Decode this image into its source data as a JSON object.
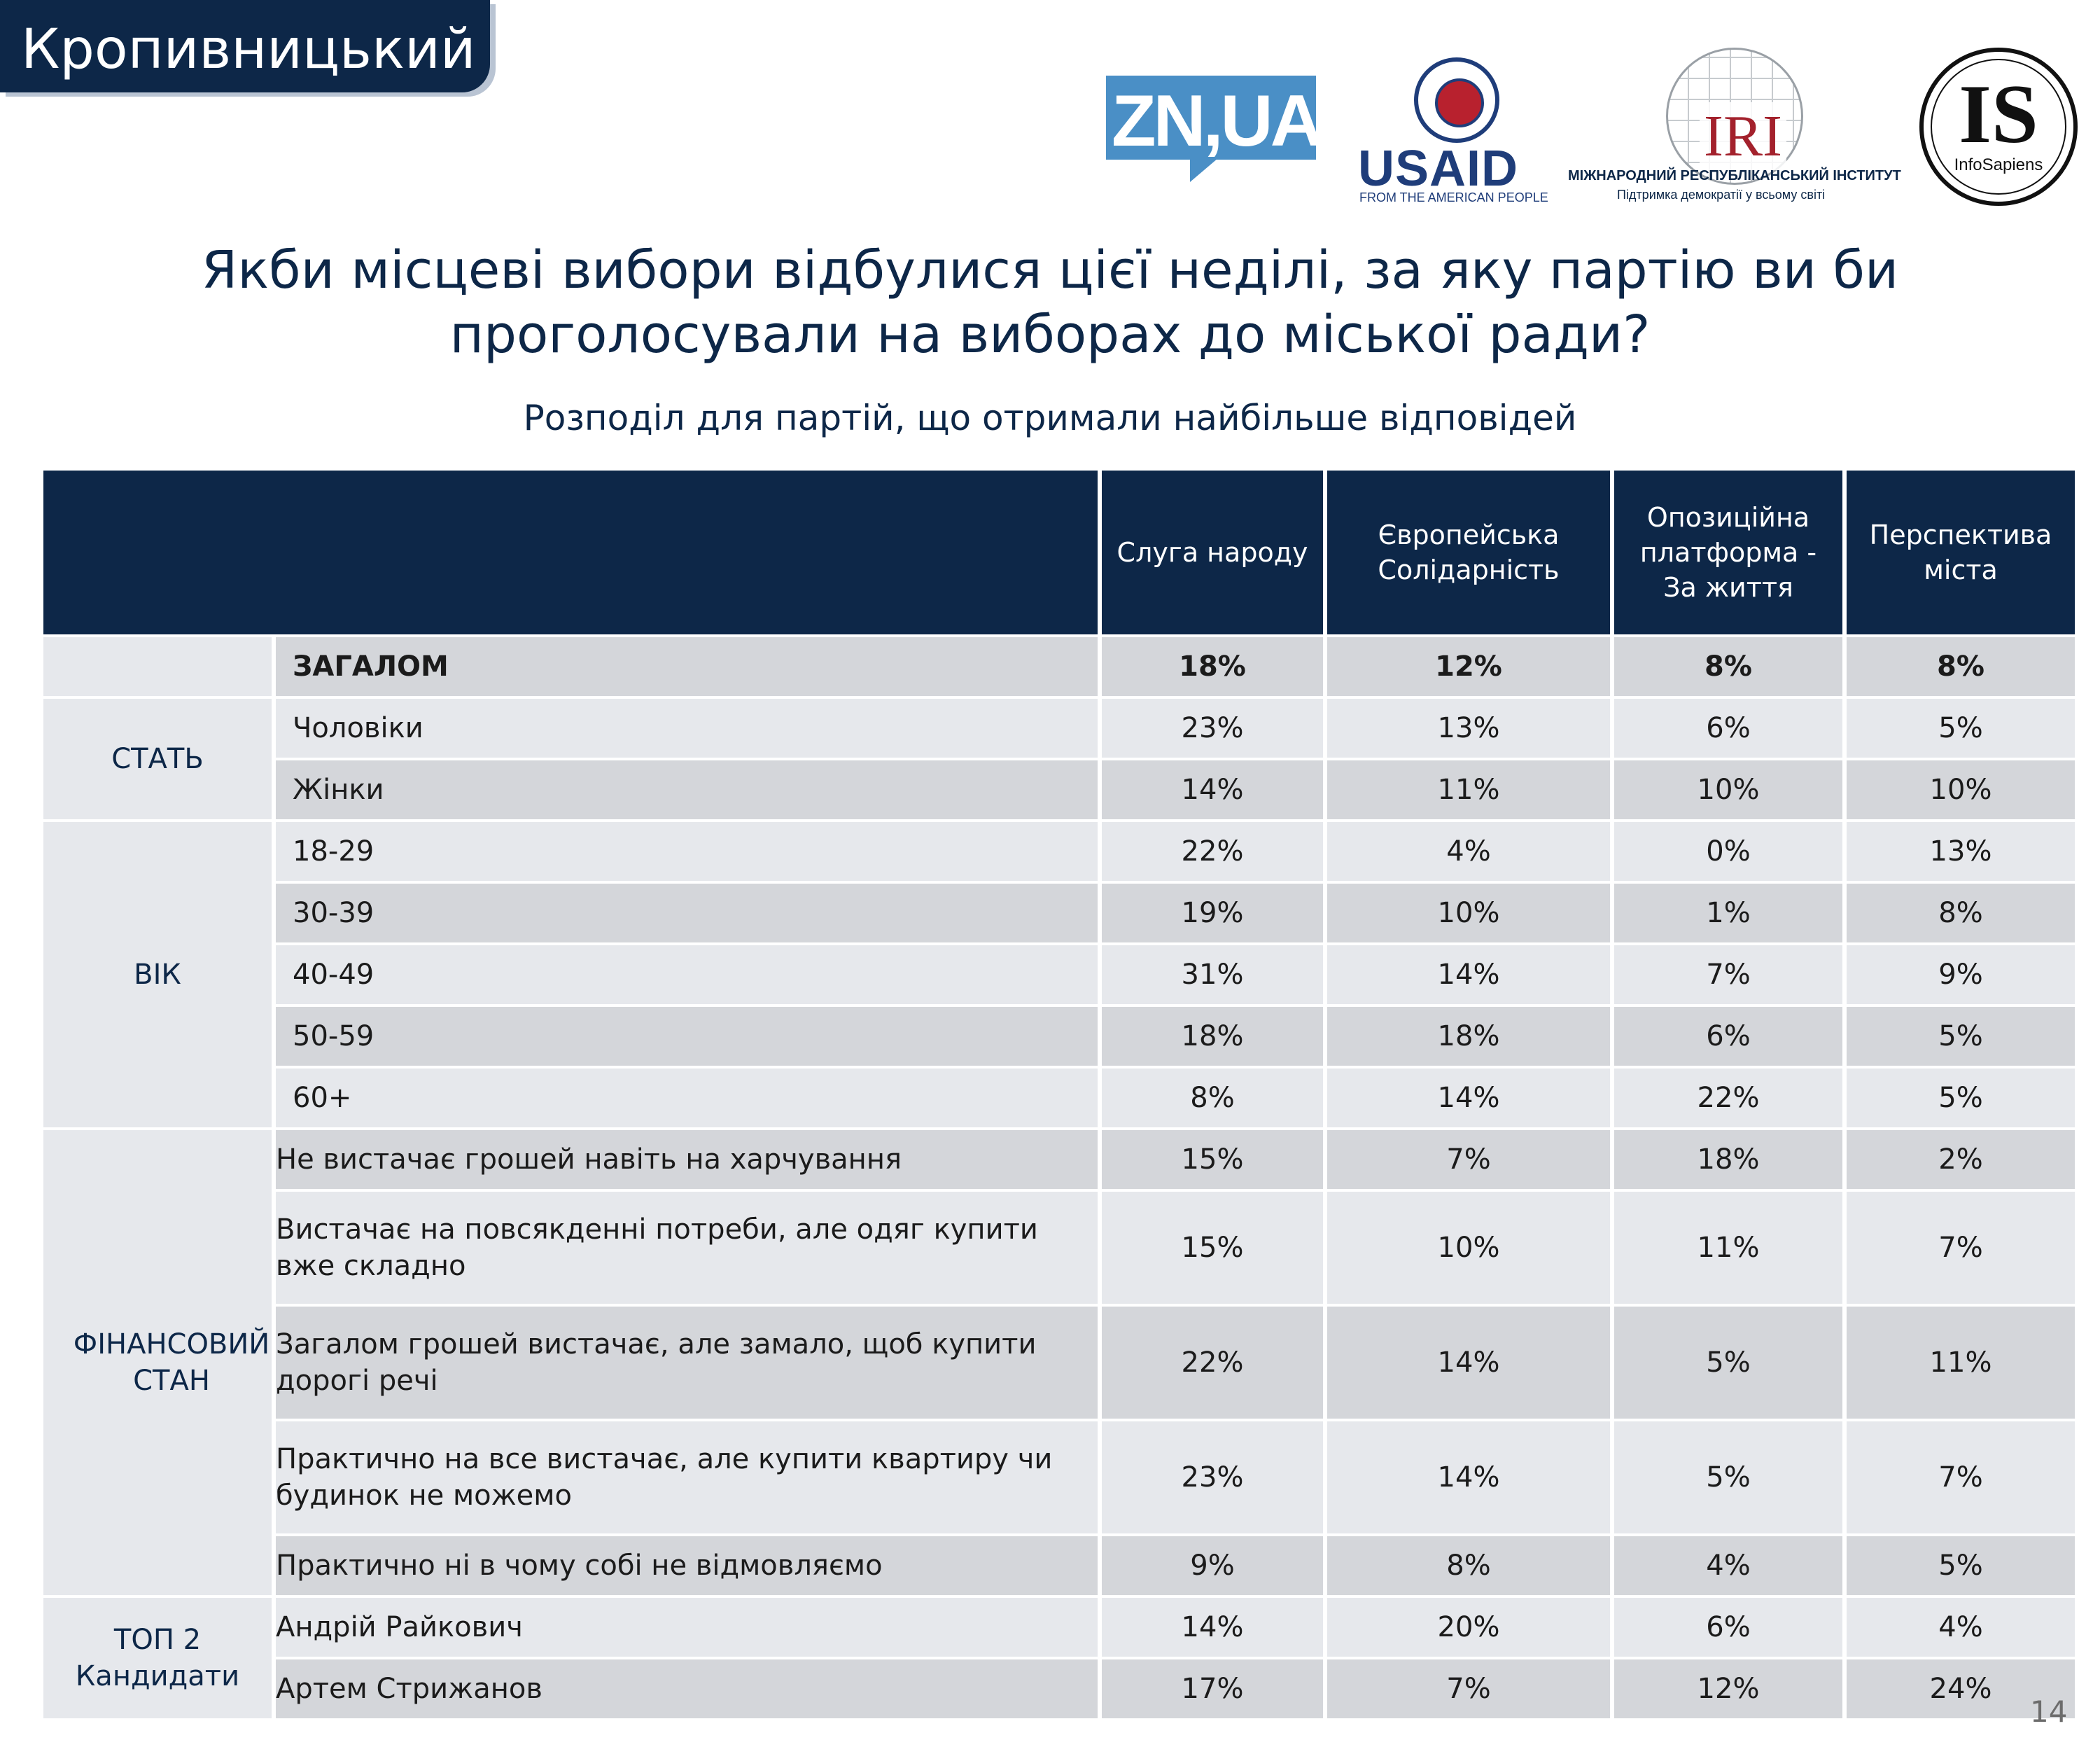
{
  "city": "Кропивницький",
  "logos": {
    "zn": "ZN,UA",
    "usaid_word": "USAID",
    "usaid_sub": "FROM THE AMERICAN PEOPLE",
    "iri_word": "IRI",
    "iri_line1": "МІЖНАРОДНИЙ РЕСПУБЛІКАНСЬКИЙ ІНСТИТУТ",
    "iri_line2": "Підтримка демократії у всьому світі",
    "is_word": "IS",
    "is_sub": "InfoSapiens"
  },
  "title_line1": "Якби місцеві вибори відбулися цієї неділі, за яку партію ви би",
  "title_line2": "проголосували на виборах до міської ради?",
  "subtitle": "Розподіл для партій, що отримали найбільше відповідей",
  "columns": [
    "Слуга народу",
    "Європейська Солідарність",
    "Опозиційна платформа - За життя",
    "Перспектива міста"
  ],
  "groups": {
    "sex": "СТАТЬ",
    "age": "ВІК",
    "finance": "ФІНАНСОВИЙ СТАН",
    "top2": "ТОП 2 Кандидати"
  },
  "rows": [
    {
      "label": "ЗАГАЛОМ",
      "values": [
        "18%",
        "12%",
        "8%",
        "8%"
      ]
    },
    {
      "label": "Чоловіки",
      "values": [
        "23%",
        "13%",
        "6%",
        "5%"
      ]
    },
    {
      "label": "Жінки",
      "values": [
        "14%",
        "11%",
        "10%",
        "10%"
      ]
    },
    {
      "label": "18-29",
      "values": [
        "22%",
        "4%",
        "0%",
        "13%"
      ]
    },
    {
      "label": "30-39",
      "values": [
        "19%",
        "10%",
        "1%",
        "8%"
      ]
    },
    {
      "label": "40-49",
      "values": [
        "31%",
        "14%",
        "7%",
        "9%"
      ]
    },
    {
      "label": "50-59",
      "values": [
        "18%",
        "18%",
        "6%",
        "5%"
      ]
    },
    {
      "label": "60+",
      "values": [
        "8%",
        "14%",
        "22%",
        "5%"
      ]
    },
    {
      "label": "Не вистачає грошей навіть на харчування",
      "values": [
        "15%",
        "7%",
        "18%",
        "2%"
      ]
    },
    {
      "label": "Вистачає на повсякденні потреби, але одяг купити вже складно",
      "values": [
        "15%",
        "10%",
        "11%",
        "7%"
      ]
    },
    {
      "label": "Загалом грошей вистачає, але замало, щоб купити дорогі речі",
      "values": [
        "22%",
        "14%",
        "5%",
        "11%"
      ]
    },
    {
      "label": "Практично на все вистачає, але купити квартиру чи будинок не можемо",
      "values": [
        "23%",
        "14%",
        "5%",
        "7%"
      ]
    },
    {
      "label": "Практично ні в чому собі не відмовляємо",
      "values": [
        "9%",
        "8%",
        "4%",
        "5%"
      ]
    },
    {
      "label": "Андрій Райкович",
      "values": [
        "14%",
        "20%",
        "6%",
        "4%"
      ]
    },
    {
      "label": "Артем Стрижанов",
      "values": [
        "17%",
        "7%",
        "12%",
        "24%"
      ]
    }
  ],
  "page_number": "14"
}
